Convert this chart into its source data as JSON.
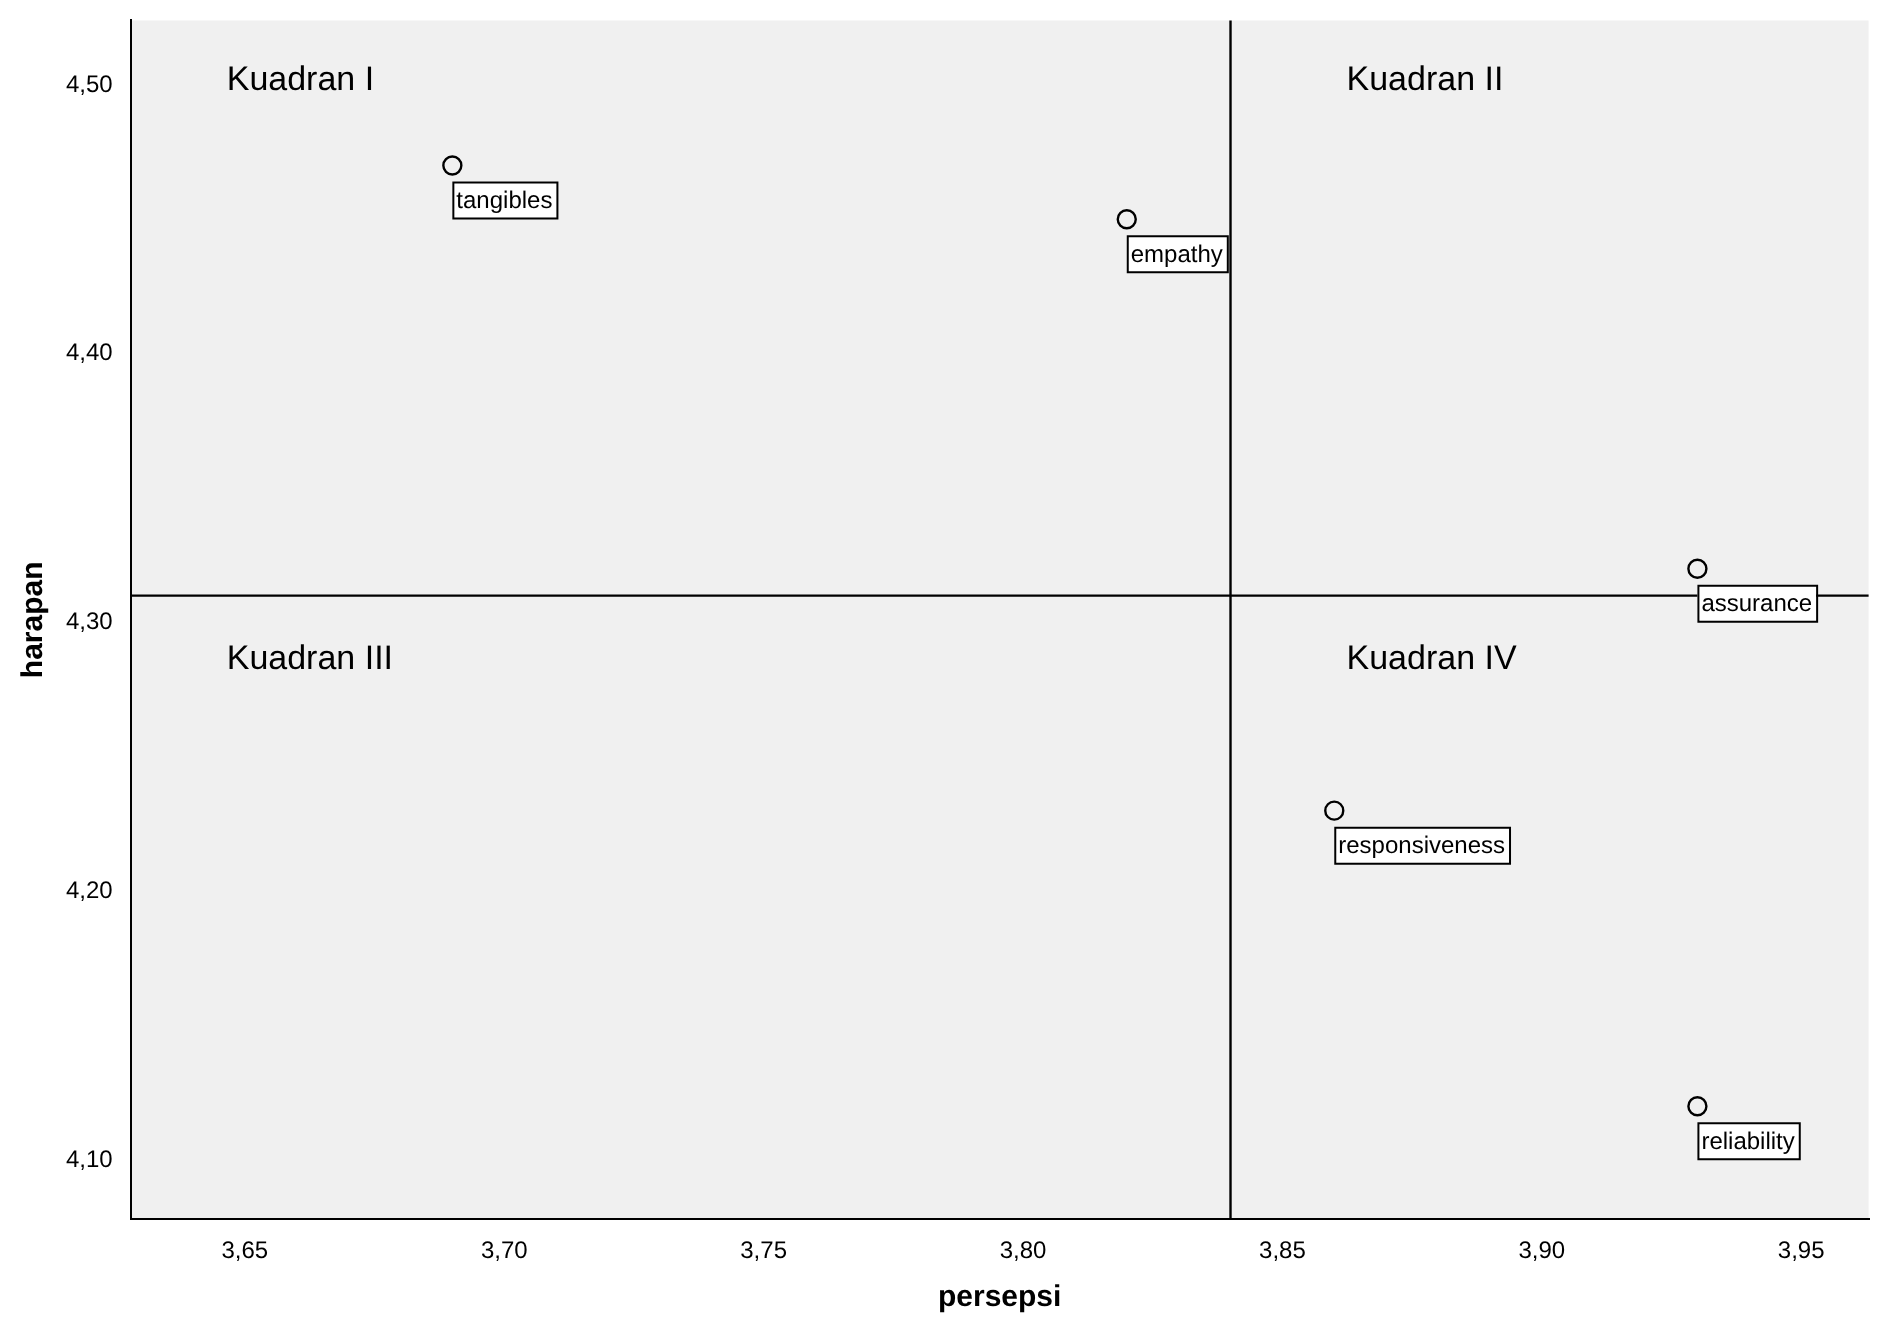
{
  "chart_data": {
    "type": "scatter",
    "xlabel": "persepsi",
    "ylabel": "harapan",
    "x": [
      3.69,
      3.82,
      3.93,
      3.86,
      3.93
    ],
    "values": [
      4.47,
      4.45,
      4.32,
      4.23,
      4.12
    ],
    "color": "#000000",
    "marker": "circle",
    "grid": false,
    "legend": false,
    "xlim": [
      3.628,
      3.963
    ],
    "ylim": [
      4.078,
      4.524
    ],
    "xticks": [
      {
        "value": 3.65,
        "label": "3,65"
      },
      {
        "value": 3.7,
        "label": "3,70"
      },
      {
        "value": 3.75,
        "label": "3,75"
      },
      {
        "value": 3.8,
        "label": "3,80"
      },
      {
        "value": 3.85,
        "label": "3,85"
      },
      {
        "value": 3.9,
        "label": "3,90"
      },
      {
        "value": 3.95,
        "label": "3,95"
      }
    ],
    "yticks": [
      {
        "value": 4.1,
        "label": "4,10"
      },
      {
        "value": 4.2,
        "label": "4,20"
      },
      {
        "value": 4.3,
        "label": "4,30"
      },
      {
        "value": 4.4,
        "label": "4,40"
      },
      {
        "value": 4.5,
        "label": "4,50"
      }
    ],
    "ref_lines": [
      {
        "axis": "x",
        "value": 3.84,
        "color": "#000000"
      },
      {
        "axis": "y",
        "value": 4.31,
        "color": "#000000"
      }
    ],
    "annotations": [
      {
        "text": "tangibles",
        "x": 3.69,
        "y": 4.47
      },
      {
        "text": "empathy",
        "x": 3.82,
        "y": 4.45
      },
      {
        "text": "assurance",
        "x": 3.93,
        "y": 4.32
      },
      {
        "text": "responsiveness",
        "x": 3.86,
        "y": 4.23
      },
      {
        "text": "reliability",
        "x": 3.93,
        "y": 4.12
      },
      "Kuadran I",
      "Kuadran II",
      "Kuadran III",
      "Kuadran IV"
    ]
  }
}
